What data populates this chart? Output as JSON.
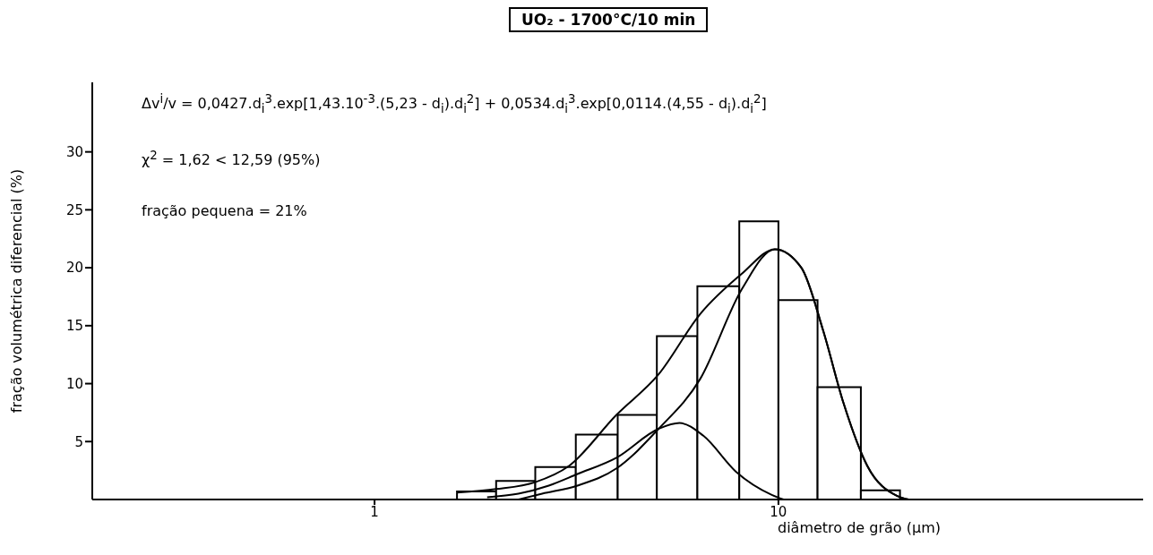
{
  "chart_data": {
    "type": "histogram",
    "title": "UO₂ - 1700°C/10 min",
    "xlabel": "diâmetro de grão (µm)",
    "ylabel": "fração volumétrica diferencial (%)",
    "annotations": [
      "Δv$^{i}$/v = 0,0427.d$_{i}$$^{3}$.exp[1,43.10$^{-3}$.(5,23 - d$_{i}$).d$_{i}$$^{2}$] + 0,0534.d$_{i}$$^{3}$.exp[0,0114.(4,55 - d$_{i}$).d$_{i}$$^{2}$]",
      "χ$^{2}$ = 1,62 < 12,59 (95%)",
      "fração pequena = 21%"
    ],
    "bins": [
      1.6,
      2,
      2.5,
      3.15,
      4,
      5,
      6.3,
      8,
      10,
      12.5,
      16,
      20
    ],
    "values": [
      0.7,
      1.6,
      2.8,
      5.6,
      7.3,
      14.1,
      18.4,
      24.0,
      17.2,
      9.7,
      0.8
    ],
    "color": "#000000",
    "series": [
      {
        "type": "line",
        "color": "#000000",
        "x": [
          1.6,
          2,
          2.5,
          3.03,
          3.97,
          5.05,
          6.4,
          8.13,
          9.8,
          11.4,
          12.9,
          14.5,
          16.6,
          19.7,
          21
        ],
        "values": [
          0.6,
          0.9,
          1.5,
          2.9,
          7.3,
          10.8,
          16.0,
          19.5,
          21.6,
          20.0,
          14.6,
          8.3,
          2.9,
          0.3,
          0
        ]
      },
      {
        "type": "line",
        "color": "#000000",
        "x": [
          2.27,
          2.6,
          3.18,
          3.98,
          5.05,
          6.4,
          8.13,
          9.8,
          11.4,
          12.9,
          14.5,
          16.6,
          19.7,
          21
        ],
        "values": [
          0,
          0.5,
          1.2,
          2.7,
          6.1,
          10.4,
          18.2,
          21.6,
          20.0,
          14.6,
          8.3,
          2.9,
          0.3,
          0
        ]
      },
      {
        "type": "line",
        "color": "#000000",
        "x": [
          1.9,
          2.27,
          2.7,
          3.18,
          3.97,
          5.05,
          5.69,
          6.52,
          7.85,
          9.63,
          10.3
        ],
        "values": [
          0.2,
          0.5,
          1.2,
          2.2,
          3.6,
          6.1,
          6.6,
          5.5,
          2.4,
          0.4,
          0
        ]
      }
    ],
    "xlim": [
      0.2,
      80
    ],
    "ylim": [
      0,
      36
    ],
    "log": "x",
    "xticks": [
      1,
      10
    ],
    "yticks": [
      5,
      10,
      15,
      20,
      25,
      30
    ]
  }
}
